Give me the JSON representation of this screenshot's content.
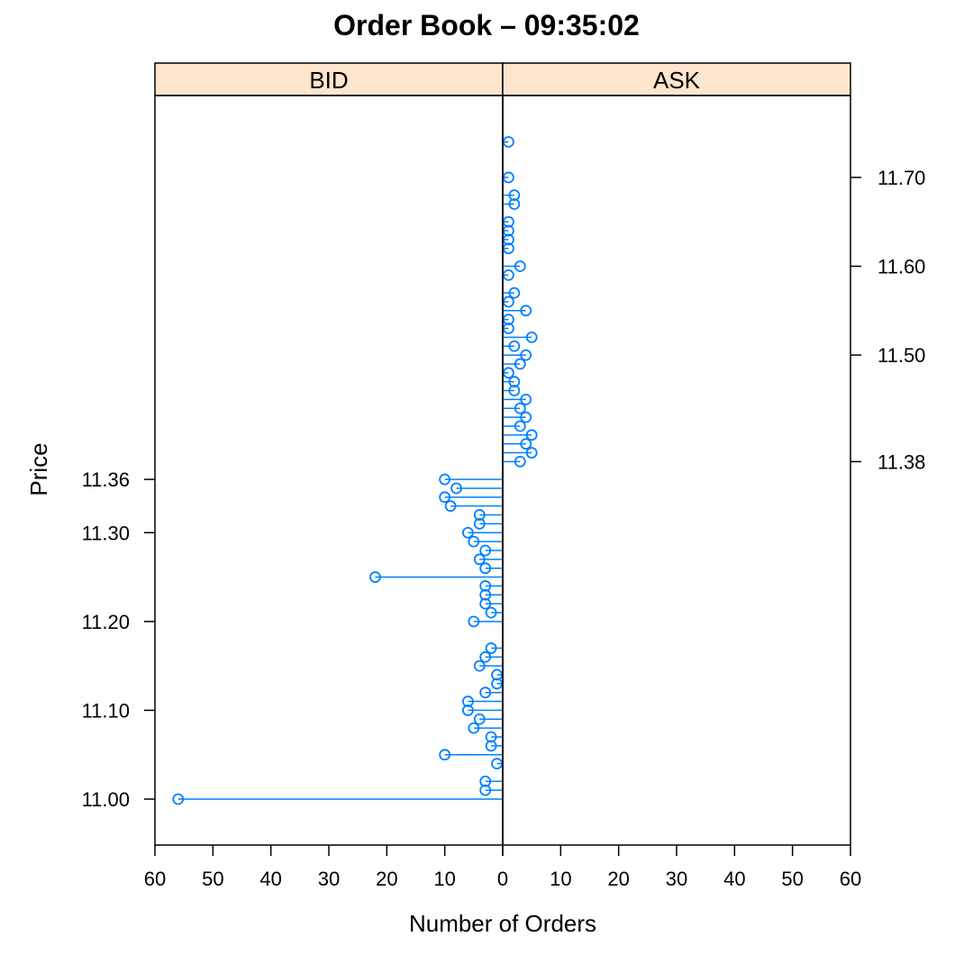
{
  "chart_data": {
    "type": "dot-plot",
    "title": "Order Book – 09:35:02",
    "xlabel": "Number of Orders",
    "ylabel": "Price",
    "xlim": [
      60,
      0,
      60
    ],
    "ylim": [
      10.95,
      11.79
    ],
    "panels": [
      {
        "name": "BID",
        "y_ticks": [
          "11.00",
          "11.10",
          "11.20",
          "11.30",
          "11.36"
        ],
        "x_ticks": [
          "60",
          "50",
          "40",
          "30",
          "20",
          "10",
          "0"
        ],
        "points": [
          {
            "price": 11.36,
            "orders": 10
          },
          {
            "price": 11.35,
            "orders": 8
          },
          {
            "price": 11.34,
            "orders": 10
          },
          {
            "price": 11.33,
            "orders": 9
          },
          {
            "price": 11.32,
            "orders": 4
          },
          {
            "price": 11.31,
            "orders": 4
          },
          {
            "price": 11.3,
            "orders": 6
          },
          {
            "price": 11.29,
            "orders": 5
          },
          {
            "price": 11.28,
            "orders": 3
          },
          {
            "price": 11.27,
            "orders": 4
          },
          {
            "price": 11.26,
            "orders": 3
          },
          {
            "price": 11.25,
            "orders": 22
          },
          {
            "price": 11.24,
            "orders": 3
          },
          {
            "price": 11.23,
            "orders": 3
          },
          {
            "price": 11.22,
            "orders": 3
          },
          {
            "price": 11.21,
            "orders": 2
          },
          {
            "price": 11.2,
            "orders": 5
          },
          {
            "price": 11.17,
            "orders": 2
          },
          {
            "price": 11.16,
            "orders": 3
          },
          {
            "price": 11.15,
            "orders": 4
          },
          {
            "price": 11.14,
            "orders": 1
          },
          {
            "price": 11.13,
            "orders": 1
          },
          {
            "price": 11.12,
            "orders": 3
          },
          {
            "price": 11.11,
            "orders": 6
          },
          {
            "price": 11.1,
            "orders": 6
          },
          {
            "price": 11.09,
            "orders": 4
          },
          {
            "price": 11.08,
            "orders": 5
          },
          {
            "price": 11.07,
            "orders": 2
          },
          {
            "price": 11.06,
            "orders": 2
          },
          {
            "price": 11.05,
            "orders": 10
          },
          {
            "price": 11.04,
            "orders": 1
          },
          {
            "price": 11.02,
            "orders": 3
          },
          {
            "price": 11.01,
            "orders": 3
          },
          {
            "price": 11.0,
            "orders": 56
          }
        ]
      },
      {
        "name": "ASK",
        "y_ticks": [
          "11.38",
          "11.50",
          "11.60",
          "11.70"
        ],
        "x_ticks": [
          "0",
          "10",
          "20",
          "30",
          "40",
          "50",
          "60"
        ],
        "points": [
          {
            "price": 11.38,
            "orders": 3
          },
          {
            "price": 11.39,
            "orders": 5
          },
          {
            "price": 11.4,
            "orders": 4
          },
          {
            "price": 11.41,
            "orders": 5
          },
          {
            "price": 11.42,
            "orders": 3
          },
          {
            "price": 11.43,
            "orders": 4
          },
          {
            "price": 11.44,
            "orders": 3
          },
          {
            "price": 11.45,
            "orders": 4
          },
          {
            "price": 11.46,
            "orders": 2
          },
          {
            "price": 11.47,
            "orders": 2
          },
          {
            "price": 11.48,
            "orders": 1
          },
          {
            "price": 11.49,
            "orders": 3
          },
          {
            "price": 11.5,
            "orders": 4
          },
          {
            "price": 11.51,
            "orders": 2
          },
          {
            "price": 11.52,
            "orders": 5
          },
          {
            "price": 11.53,
            "orders": 1
          },
          {
            "price": 11.54,
            "orders": 1
          },
          {
            "price": 11.55,
            "orders": 4
          },
          {
            "price": 11.56,
            "orders": 1
          },
          {
            "price": 11.57,
            "orders": 2
          },
          {
            "price": 11.59,
            "orders": 1
          },
          {
            "price": 11.6,
            "orders": 3
          },
          {
            "price": 11.62,
            "orders": 1
          },
          {
            "price": 11.63,
            "orders": 1
          },
          {
            "price": 11.64,
            "orders": 1
          },
          {
            "price": 11.65,
            "orders": 1
          },
          {
            "price": 11.67,
            "orders": 2
          },
          {
            "price": 11.68,
            "orders": 2
          },
          {
            "price": 11.7,
            "orders": 1
          },
          {
            "price": 11.74,
            "orders": 1
          }
        ]
      }
    ],
    "colors": {
      "marker": "#0080ff",
      "strip_fill": "#ffe5cc",
      "axis": "#000000"
    },
    "marker_style": "open-circle"
  }
}
